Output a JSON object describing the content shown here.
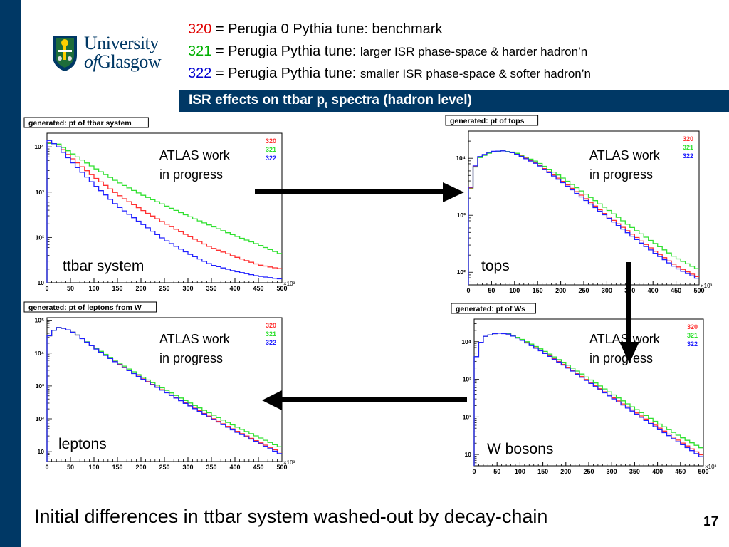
{
  "slide": {
    "logo": {
      "line1": "University",
      "line2_prefix": "of",
      "line2_main": "Glasgow"
    },
    "tunes": [
      {
        "num": "320",
        "color": "#e00000",
        "prefix": "= Perugia 0 Pythia tune: ",
        "desc": "benchmark"
      },
      {
        "num": "321",
        "color": "#00b000",
        "prefix": "= Perugia Pythia tune: ",
        "desc": "larger ISR phase-space & harder hadron’n"
      },
      {
        "num": "322",
        "color": "#0000d0",
        "prefix": "= Perugia Pythia tune: ",
        "desc": "smaller ISR phase-space & softer hadron’n"
      }
    ],
    "title": {
      "main": "ISR effects on ttbar p",
      "sub": "t",
      "suffix": " spectra (hadron level)"
    },
    "footer": "Initial differences in ttbar system washed-out by decay-chain",
    "page_number": "17",
    "colors": {
      "navy": "#003865",
      "red": "#ff3030",
      "green": "#30e030",
      "blue": "#2020ff"
    }
  },
  "chart_data": [
    {
      "type": "line",
      "title": "generated: pt of ttbar system",
      "panel_label": "ttbar system",
      "annotation": [
        "ATLAS work",
        "in progress"
      ],
      "legend": [
        "320",
        "321",
        "322"
      ],
      "x_ticks": [
        "0",
        "50",
        "100",
        "150",
        "200",
        "250",
        "300",
        "350",
        "400",
        "450",
        "500"
      ],
      "x_multiplier": "×10³",
      "y_scale": "log",
      "ylim": [
        10,
        20000
      ],
      "y_ticks": [
        "10",
        "10²",
        "10³",
        "10⁴"
      ],
      "series": [
        {
          "name": "320",
          "x": [
            0,
            25,
            50,
            100,
            150,
            200,
            250,
            300,
            350,
            400,
            450,
            500
          ],
          "y": [
            13000,
            11000,
            6000,
            2200,
            900,
            420,
            210,
            110,
            60,
            38,
            25,
            20
          ]
        },
        {
          "name": "321",
          "x": [
            0,
            25,
            50,
            100,
            150,
            200,
            250,
            300,
            350,
            400,
            450,
            500
          ],
          "y": [
            12000,
            11500,
            7500,
            3500,
            1700,
            900,
            520,
            300,
            180,
            110,
            70,
            42
          ]
        },
        {
          "name": "322",
          "x": [
            0,
            25,
            50,
            100,
            150,
            200,
            250,
            300,
            350,
            400,
            450,
            500
          ],
          "y": [
            15000,
            10000,
            5000,
            1500,
            500,
            210,
            90,
            45,
            25,
            18,
            14,
            12
          ]
        }
      ]
    },
    {
      "type": "line",
      "title": "generated: pt of tops",
      "panel_label": "tops",
      "annotation": [
        "ATLAS work",
        "in progress"
      ],
      "legend": [
        "320",
        "321",
        "322"
      ],
      "x_ticks": [
        "0",
        "50",
        "100",
        "150",
        "200",
        "250",
        "300",
        "350",
        "400",
        "450",
        "500"
      ],
      "x_multiplier": "×10³",
      "y_scale": "log",
      "ylim": [
        60,
        30000
      ],
      "y_ticks": [
        "10²",
        "10³",
        "10⁴"
      ],
      "series": [
        {
          "name": "320",
          "x": [
            0,
            5,
            10,
            25,
            50,
            75,
            100,
            150,
            200,
            250,
            300,
            350,
            400,
            450,
            500
          ],
          "y": [
            400,
            3000,
            6000,
            10500,
            13000,
            13500,
            12500,
            8000,
            4200,
            2100,
            1000,
            500,
            250,
            130,
            80
          ]
        },
        {
          "name": "321",
          "x": [
            0,
            5,
            10,
            25,
            50,
            75,
            100,
            150,
            200,
            250,
            300,
            350,
            400,
            450,
            500
          ],
          "y": [
            400,
            2900,
            5800,
            10300,
            12800,
            13500,
            12700,
            8600,
            4800,
            2500,
            1300,
            650,
            340,
            180,
            110
          ]
        },
        {
          "name": "322",
          "x": [
            0,
            5,
            10,
            25,
            50,
            75,
            100,
            150,
            200,
            250,
            300,
            350,
            400,
            450,
            500
          ],
          "y": [
            420,
            3100,
            6100,
            10700,
            13200,
            13500,
            12300,
            7800,
            4000,
            1950,
            950,
            460,
            230,
            120,
            75
          ]
        }
      ]
    },
    {
      "type": "line",
      "title": "generated: pt of leptons from W",
      "panel_label": "leptons",
      "annotation": [
        "ATLAS work",
        "in progress"
      ],
      "legend": [
        "320",
        "321",
        "322"
      ],
      "x_ticks": [
        "0",
        "50",
        "100",
        "150",
        "200",
        "250",
        "300",
        "350",
        "400",
        "450",
        "500"
      ],
      "x_multiplier": "×10³",
      "y_scale": "log",
      "ylim": [
        5,
        120000
      ],
      "y_ticks": [
        "10",
        "10²",
        "10³",
        "10⁴",
        "10⁵"
      ],
      "series": [
        {
          "name": "320",
          "x": [
            0,
            10,
            25,
            40,
            60,
            100,
            150,
            200,
            250,
            300,
            350,
            400,
            450,
            500
          ],
          "y": [
            25000,
            45000,
            60000,
            55000,
            40000,
            15000,
            5000,
            1800,
            700,
            280,
            110,
            45,
            20,
            9
          ]
        },
        {
          "name": "321",
          "x": [
            0,
            10,
            25,
            40,
            60,
            100,
            150,
            200,
            250,
            300,
            350,
            400,
            450,
            500
          ],
          "y": [
            25000,
            45000,
            60000,
            55000,
            40000,
            15500,
            5400,
            2000,
            800,
            330,
            140,
            60,
            28,
            13
          ]
        },
        {
          "name": "322",
          "x": [
            0,
            10,
            25,
            40,
            60,
            100,
            150,
            200,
            250,
            300,
            350,
            400,
            450,
            500
          ],
          "y": [
            25000,
            45000,
            60000,
            55000,
            40000,
            14800,
            4900,
            1750,
            680,
            270,
            105,
            42,
            19,
            8
          ]
        }
      ]
    },
    {
      "type": "line",
      "title": "generated: pt of Ws",
      "panel_label": "W bosons",
      "annotation": [
        "ATLAS work",
        "in progress"
      ],
      "legend": [
        "320",
        "321",
        "322"
      ],
      "x_ticks": [
        "0",
        "50",
        "100",
        "150",
        "200",
        "250",
        "300",
        "350",
        "400",
        "450",
        "500"
      ],
      "x_multiplier": "×10³",
      "y_scale": "log",
      "ylim": [
        5,
        40000
      ],
      "y_ticks": [
        "10",
        "10²",
        "10³",
        "10⁴"
      ],
      "series": [
        {
          "name": "320",
          "x": [
            0,
            5,
            10,
            25,
            50,
            75,
            100,
            150,
            200,
            250,
            300,
            350,
            400,
            450,
            500
          ],
          "y": [
            500,
            4000,
            8000,
            14000,
            17000,
            16000,
            12000,
            5500,
            2300,
            900,
            350,
            140,
            55,
            22,
            9
          ]
        },
        {
          "name": "321",
          "x": [
            0,
            5,
            10,
            25,
            50,
            75,
            100,
            150,
            200,
            250,
            300,
            350,
            400,
            450,
            500
          ],
          "y": [
            500,
            4000,
            8000,
            14000,
            17000,
            16200,
            12400,
            6000,
            2600,
            1050,
            420,
            170,
            70,
            30,
            14
          ]
        },
        {
          "name": "322",
          "x": [
            0,
            5,
            10,
            25,
            50,
            75,
            100,
            150,
            200,
            250,
            300,
            350,
            400,
            450,
            500
          ],
          "y": [
            500,
            4000,
            8000,
            14000,
            17000,
            15900,
            11800,
            5300,
            2200,
            850,
            330,
            130,
            50,
            20,
            8
          ]
        }
      ]
    }
  ]
}
